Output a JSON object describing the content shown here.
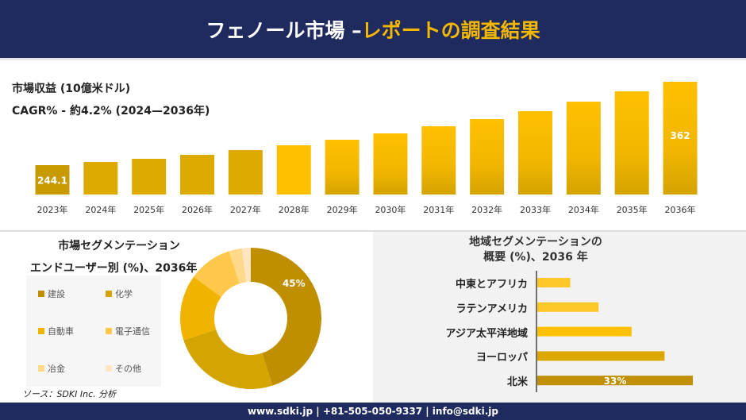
{
  "header": {
    "title_part1": "フェノール市場 –",
    "title_part2": "レポートの調査結果"
  },
  "revenue": {
    "label": "市場収益 (10億米ドル)",
    "cagr": "CAGR% - 約4.2% (2024—2036年)"
  },
  "colors": {
    "navy": "#1f2b5e",
    "accent": "#f5b800"
  },
  "chart_data": [
    {
      "type": "bar",
      "title": "市場収益 (10億米ドル)",
      "categories": [
        "2023年",
        "2024年",
        "2025年",
        "2026年",
        "2027年",
        "2028年",
        "2029年",
        "2030年",
        "2031年",
        "2032年",
        "2033年",
        "2034年",
        "2035年",
        "2036年"
      ],
      "values": [
        244.1,
        248.6,
        253.1,
        258.7,
        265.4,
        272.2,
        280.0,
        289.0,
        299.1,
        309.2,
        320.5,
        333.9,
        348.5,
        362
      ],
      "data_labels": [
        "244.1",
        "",
        "",
        "",
        "",
        "",
        "",
        "",
        "",
        "",
        "",
        "",
        "",
        "362"
      ]
    },
    {
      "type": "pie",
      "title": "市場セグメンテーション",
      "subtitle": "エンドユーザー別 (%)、2036年",
      "categories": [
        "建設",
        "化学",
        "自動車",
        "電子通信",
        "冶金",
        "その他"
      ],
      "values": [
        45,
        25,
        15,
        10,
        3,
        2
      ],
      "colors": [
        "#bf8f00",
        "#d4a500",
        "#f0b400",
        "#ffc84a",
        "#ffd98a",
        "#ffe5c0"
      ],
      "data_labels": [
        "45%",
        "",
        "",
        "",
        "",
        ""
      ],
      "legend": "left"
    },
    {
      "type": "bar",
      "orientation": "horizontal",
      "title": "地域セグメンテーションの",
      "subtitle": "概要 (%)、2036 年",
      "categories": [
        "中東とアフリカ",
        "ラテンアメリカ",
        "アジア太平洋地域",
        "ヨーロッパ",
        "北米"
      ],
      "values": [
        7,
        13,
        20,
        27,
        33
      ],
      "colors": [
        "#ffc82a",
        "#ffc82a",
        "#ffc000",
        "#dca800",
        "#bf8f00"
      ],
      "data_labels": [
        "",
        "",
        "",
        "",
        "33%"
      ]
    }
  ],
  "source": "ソース：SDKI Inc. 分析",
  "footer": "www.sdki.jp | +81-505-050-9337 | info@sdki.jp"
}
